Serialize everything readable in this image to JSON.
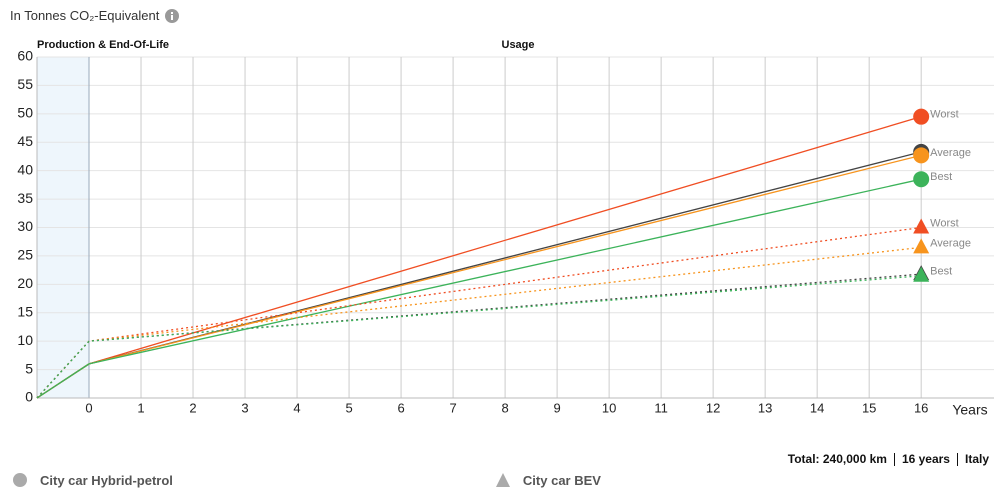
{
  "chart_data": {
    "type": "line",
    "title": "In Tonnes CO₂-Equivalent",
    "phases": [
      "Production & End-Of-Life",
      "Usage"
    ],
    "xlabel": "Years",
    "x": [
      -1,
      0,
      16
    ],
    "xlim": [
      -1,
      17.4
    ],
    "xticks": [
      0,
      1,
      2,
      3,
      4,
      5,
      6,
      7,
      8,
      9,
      10,
      11,
      12,
      13,
      14,
      15,
      16
    ],
    "ylim": [
      0,
      60
    ],
    "yticks": [
      0,
      5,
      10,
      15,
      20,
      25,
      30,
      35,
      40,
      45,
      50,
      55,
      60
    ],
    "grid": true,
    "legend": [
      "City car Hybrid-petrol",
      "City car BEV"
    ],
    "series": [
      {
        "name": "Worst",
        "group": 0,
        "marker": "circle",
        "dash": false,
        "color": "#f04e23",
        "values": [
          0,
          6,
          49.5
        ]
      },
      {
        "group": 0,
        "marker": "circle",
        "dash": false,
        "color": "#444444",
        "values": [
          0,
          6,
          43.3
        ]
      },
      {
        "name": "Average",
        "group": 0,
        "marker": "circle",
        "dash": false,
        "color": "#f7941d",
        "values": [
          0,
          6,
          42.7
        ]
      },
      {
        "name": "Best",
        "group": 0,
        "marker": "circle",
        "dash": false,
        "color": "#3cb35a",
        "values": [
          0,
          6,
          38.5
        ]
      },
      {
        "name": "Worst",
        "group": 1,
        "marker": "triangle",
        "dash": true,
        "color": "#f04e23",
        "values": [
          0,
          10,
          30
        ]
      },
      {
        "name": "Average",
        "group": 1,
        "marker": "triangle",
        "dash": true,
        "color": "#f7941d",
        "values": [
          0,
          10,
          26.5
        ]
      },
      {
        "group": 1,
        "marker": "triangle",
        "dash": true,
        "color": "#444444",
        "values": [
          0,
          10,
          21.8
        ]
      },
      {
        "name": "Best",
        "group": 1,
        "marker": "triangle",
        "dash": true,
        "color": "#3cb35a",
        "values": [
          0,
          10,
          21.5
        ]
      }
    ]
  },
  "footer": [
    "Total: 240,000 km",
    "16 years",
    "Italy"
  ]
}
